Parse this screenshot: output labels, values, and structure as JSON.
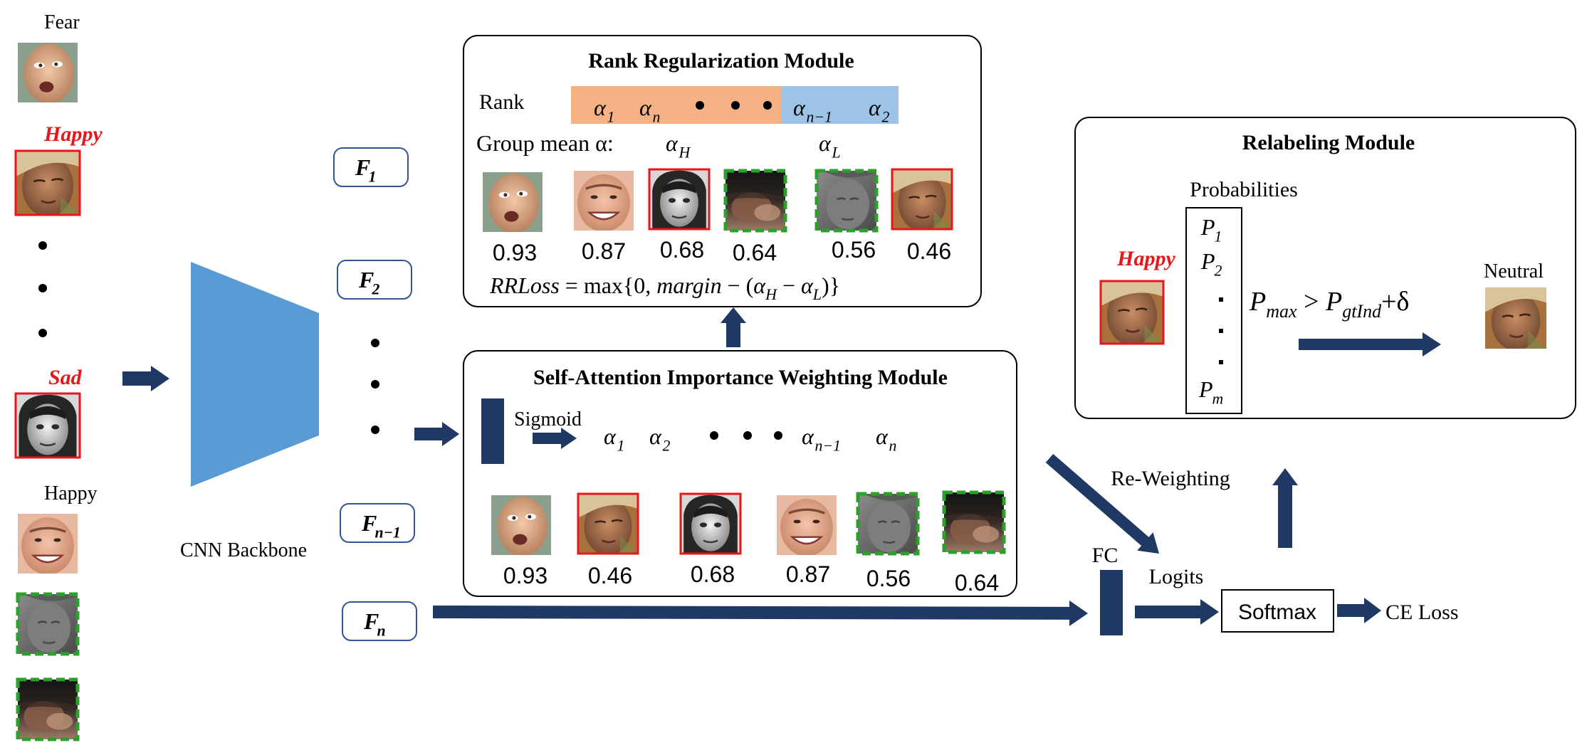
{
  "colors": {
    "arrow": "#1f3864",
    "backbone": "#5b9bd5",
    "rank_high": "#f4b183",
    "rank_low": "#9dc3e6",
    "red_label": "#e8161b",
    "red_border": "#e8161b",
    "green_dash": "#2ca02c",
    "box_stroke": "#000000"
  },
  "input_column": {
    "labels": {
      "fear": "Fear",
      "happy_noisy": "Happy",
      "sad": "Sad",
      "happy": "Happy"
    },
    "face_icons": [
      "face-fear-icon",
      "face-happy-noisy-icon",
      "face-sad-icon",
      "face-happy-smile-icon",
      "face-dark-gray-icon",
      "face-blurred-dark-icon"
    ]
  },
  "backbone": {
    "label": "CNN Backbone"
  },
  "features": {
    "f1": {
      "base": "F",
      "sub": "1"
    },
    "f2": {
      "base": "F",
      "sub": "2"
    },
    "fn1": {
      "base": "F",
      "sub": "n−1"
    },
    "fn": {
      "base": "F",
      "sub": "n"
    }
  },
  "sa_module": {
    "title": "Self-Attention Importance Weighting Module",
    "sigmoid": "Sigmoid",
    "alphas": [
      {
        "base": "α",
        "sub": "1"
      },
      {
        "base": "α",
        "sub": "2"
      },
      {
        "base": "α",
        "sub": "n−1"
      },
      {
        "base": "α",
        "sub": "n"
      }
    ],
    "scores": [
      "0.93",
      "0.46",
      "0.68",
      "0.87",
      "0.56",
      "0.64"
    ]
  },
  "rr_module": {
    "title": "Rank Regularization Module",
    "rank_label": "Rank",
    "rank_alphas": [
      {
        "base": "α",
        "sub": "1"
      },
      {
        "base": "α",
        "sub": "n"
      },
      {
        "base": "α",
        "sub": "n−1"
      },
      {
        "base": "α",
        "sub": "2"
      }
    ],
    "group_mean_label": "Group mean α:",
    "alpha_high": {
      "base": "α",
      "sub": "H"
    },
    "alpha_low": {
      "base": "α",
      "sub": "L"
    },
    "scores": [
      "0.93",
      "0.87",
      "0.68",
      "0.64",
      "0.56",
      "0.46"
    ],
    "loss_formula": {
      "name": "RRLoss",
      "equals_max": " = max{0, ",
      "margin": "margin",
      "minus_open": " − (",
      "ah_base": "α",
      "ah_sub": "H",
      "minus": " − ",
      "al_base": "α",
      "al_sub": "L",
      "close": ")}"
    }
  },
  "relabel_module": {
    "title": "Relabeling Module",
    "probabilities_label": "Probabilities",
    "probs": [
      {
        "base": "P",
        "sub": "1"
      },
      {
        "base": "P",
        "sub": "2"
      },
      {
        "base": "P",
        "sub": "m"
      }
    ],
    "input_label": "Happy",
    "output_label": "Neutral",
    "condition": {
      "pmax_base": "P",
      "pmax_sub": "max",
      "gt": " > ",
      "pgt_base": "P",
      "pgt_sub": "gtInd",
      "plus_delta": "+δ"
    }
  },
  "pipeline": {
    "fc": "FC",
    "logits": "Logits",
    "softmax": "Softmax",
    "ce_loss": "CE Loss",
    "reweighting": "Re-Weighting"
  }
}
